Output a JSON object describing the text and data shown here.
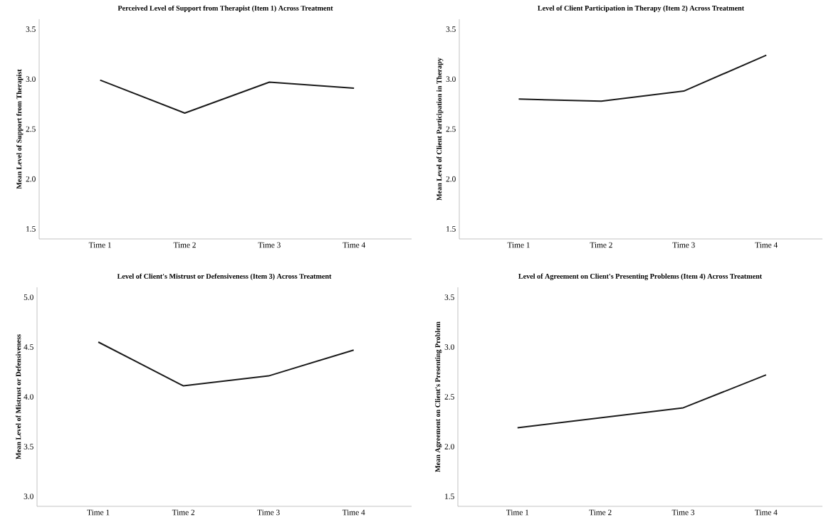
{
  "chart_data": [
    {
      "type": "line",
      "title": "Perceived Level of Support from Therapist (Item 1) Across Treatment",
      "ylabel": "Mean Level of Support from Therapist",
      "categories": [
        "Time 1",
        "Time 2",
        "Time 3",
        "Time 4"
      ],
      "values": [
        2.99,
        2.66,
        2.97,
        2.91
      ],
      "color": "#1a1a1a",
      "ylim": [
        1.4,
        3.6
      ],
      "yticks": [
        {
          "value": 1.5,
          "label": "1.5"
        },
        {
          "value": 2.0,
          "label": "2.0"
        },
        {
          "value": 2.5,
          "label": "2.5"
        },
        {
          "value": 3.0,
          "label": "3.0"
        },
        {
          "value": 3.5,
          "label": "3.5"
        }
      ]
    },
    {
      "type": "line",
      "title": "Level of Client Participation in Therapy (Item 2) Across Treatment",
      "ylabel": "Mean Level of Client Participation in Therapy",
      "categories": [
        "Time 1",
        "Time 2",
        "Time 3",
        "Time 4"
      ],
      "values": [
        2.8,
        2.78,
        2.88,
        3.24
      ],
      "color": "#1a1a1a",
      "ylim": [
        1.4,
        3.6
      ],
      "yticks": [
        {
          "value": 1.5,
          "label": "1.5"
        },
        {
          "value": 2.0,
          "label": "2.0"
        },
        {
          "value": 2.5,
          "label": "2.5"
        },
        {
          "value": 3.0,
          "label": "3.0"
        },
        {
          "value": 3.5,
          "label": "3.5"
        }
      ]
    },
    {
      "type": "line",
      "title": "Level of Client's Mistrust or Defensiveness (Item 3) Across Treatment",
      "ylabel": "Mean Level of Mistrust or Defensiveness",
      "categories": [
        "Time 1",
        "Time 2",
        "Time 3",
        "Time 4"
      ],
      "values": [
        4.55,
        4.11,
        4.21,
        4.47
      ],
      "color": "#1a1a1a",
      "ylim": [
        2.9,
        5.1
      ],
      "yticks": [
        {
          "value": 3.0,
          "label": "3.0"
        },
        {
          "value": 3.5,
          "label": "3.5"
        },
        {
          "value": 4.0,
          "label": "4.0"
        },
        {
          "value": 4.5,
          "label": "4.5"
        },
        {
          "value": 5.0,
          "label": "5.0"
        }
      ]
    },
    {
      "type": "line",
      "title": "Level of Agreement on Client's Presenting Problems (Item 4) Across Treatment",
      "ylabel": "Mean Agreement on Client's Presenting Problem",
      "categories": [
        "Time 1",
        "Time 2",
        "Time 3",
        "Time 4"
      ],
      "values": [
        2.19,
        2.29,
        2.39,
        2.72
      ],
      "color": "#1a1a1a",
      "ylim": [
        1.4,
        3.6
      ],
      "yticks": [
        {
          "value": 1.5,
          "label": "1.5"
        },
        {
          "value": 2.0,
          "label": "2.0"
        },
        {
          "value": 2.5,
          "label": "2.5"
        },
        {
          "value": 3.0,
          "label": "3.0"
        },
        {
          "value": 3.5,
          "label": "3.5"
        }
      ]
    }
  ]
}
